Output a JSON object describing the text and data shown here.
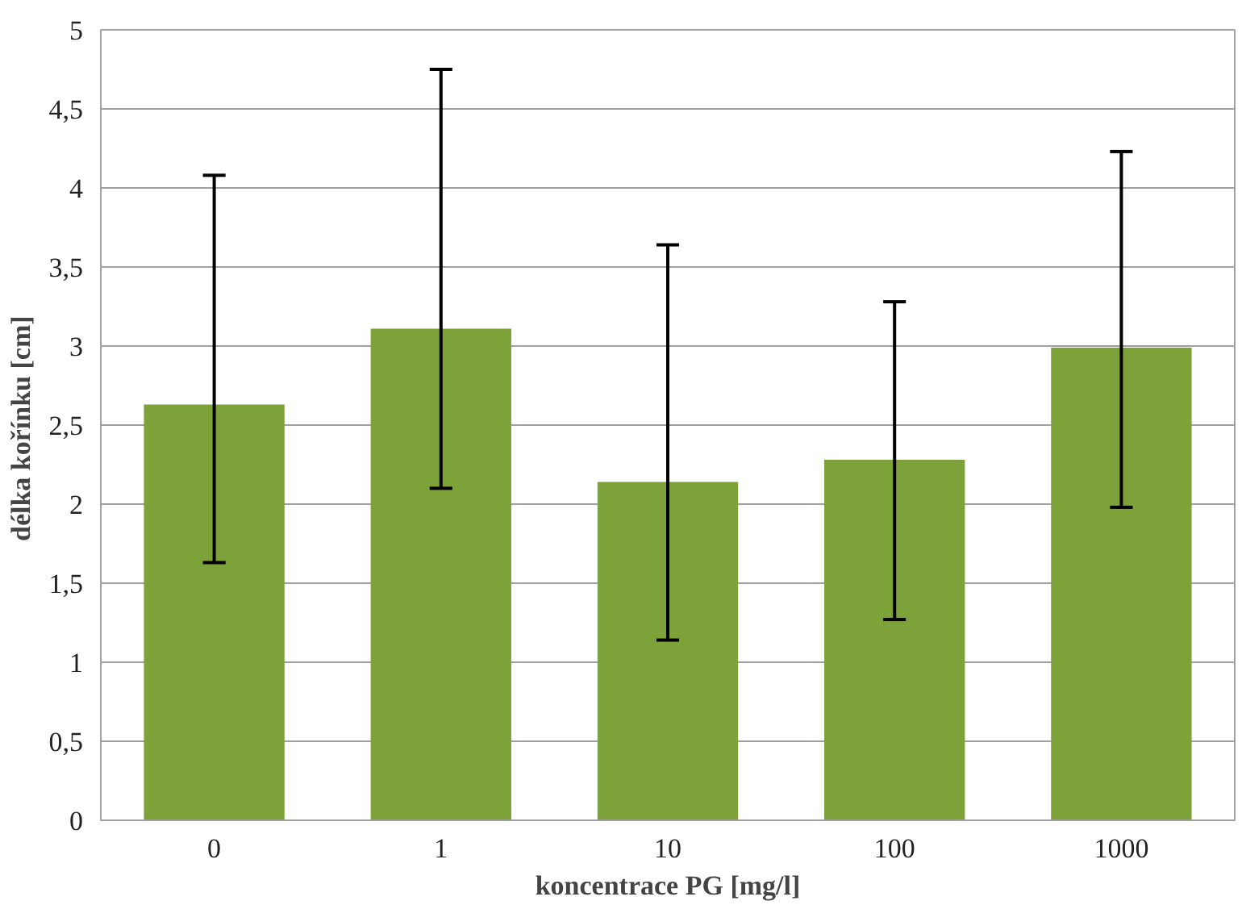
{
  "chart_data": {
    "type": "bar",
    "xlabel": "koncentrace PG [mg/l]",
    "ylabel": "délka kořínku  [cm]",
    "categories": [
      "0",
      "1",
      "10",
      "100",
      "1000"
    ],
    "values": [
      2.63,
      3.11,
      2.14,
      2.28,
      2.99
    ],
    "errors": [
      [
        1.63,
        4.08
      ],
      [
        2.1,
        4.75
      ],
      [
        1.14,
        3.64
      ],
      [
        1.27,
        3.28
      ],
      [
        1.98,
        4.23
      ]
    ],
    "color": "#7ea23a",
    "ylim": [
      0,
      5
    ],
    "yticks": [
      0,
      {
        "value": 0.5,
        "label": "0,5"
      },
      1,
      {
        "value": 1.5,
        "label": "1,5"
      },
      2,
      {
        "value": 2.5,
        "label": "2,5"
      },
      3,
      {
        "value": 3.5,
        "label": "3,5"
      },
      4,
      {
        "value": 4.5,
        "label": "4,5"
      },
      5
    ],
    "grid": "y"
  }
}
